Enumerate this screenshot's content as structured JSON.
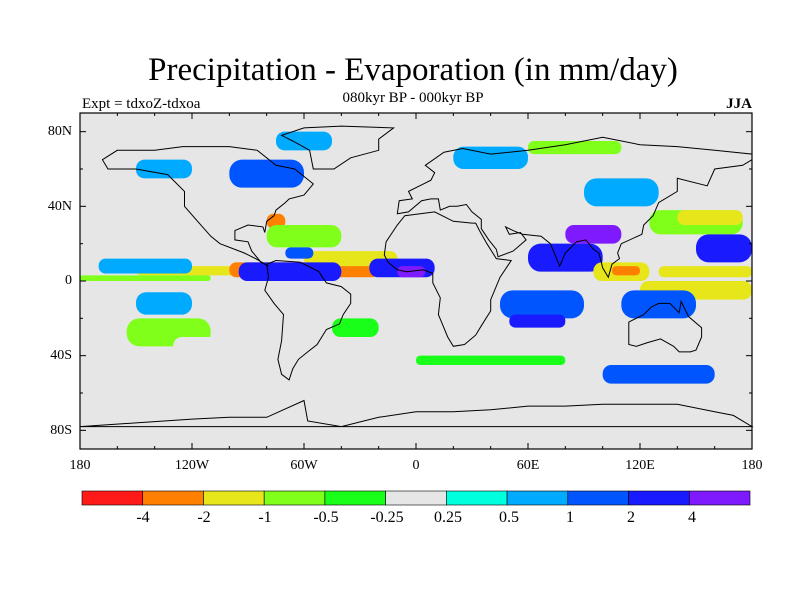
{
  "title": "Precipitation - Evaporation (in mm/day)",
  "subtitle": "080kyr BP - 000kyr BP",
  "left_label": "Expt = tdxoZ-tdxoa",
  "right_label": "JJA",
  "lat_labels": [
    "80N",
    "40N",
    "0",
    "40S",
    "80S"
  ],
  "lon_labels": [
    "180",
    "120W",
    "60W",
    "0",
    "60E",
    "120E",
    "180"
  ],
  "colorbar": {
    "colors": [
      "#ff1a1a",
      "#ff8000",
      "#e6e61a",
      "#80ff1a",
      "#1aff1a",
      "#e6e6e6",
      "#00ffdd",
      "#00aaff",
      "#0055ff",
      "#1a1aff",
      "#7f1aff"
    ],
    "labels": [
      "-4",
      "-2",
      "-1",
      "-0.5",
      "-0.25",
      "0.25",
      "0.5",
      "1",
      "2",
      "4"
    ]
  },
  "chart_data": {
    "type": "heatmap",
    "title": "Precipitation - Evaporation (in mm/day)",
    "subtitle": "080kyr BP - 000kyr BP",
    "left_label": "Expt = tdxoZ-tdxoa",
    "right_label": "JJA",
    "x_range": [
      -180,
      180
    ],
    "y_range": [
      -90,
      90
    ],
    "x_ticks": [
      "180",
      "120W",
      "60W",
      "0",
      "60E",
      "120E",
      "180"
    ],
    "y_ticks": [
      "80N",
      "40N",
      "0",
      "40S",
      "80S"
    ],
    "levels": [
      -4,
      -2,
      -1,
      -0.5,
      -0.25,
      0.25,
      0.5,
      1,
      2,
      4
    ],
    "colors": [
      "#ff1a1a",
      "#ff8000",
      "#e6e61a",
      "#80ff1a",
      "#1aff1a",
      "#e6e6e6",
      "#00ffdd",
      "#00aaff",
      "#0055ff",
      "#1a1aff",
      "#7f1aff"
    ],
    "bands": [
      [
        -150,
        -90,
        3,
        8,
        -2
      ],
      [
        -180,
        -110,
        0,
        3,
        -1
      ],
      [
        -170,
        -120,
        4,
        12,
        0.5
      ],
      [
        -100,
        -20,
        2,
        10,
        -3
      ],
      [
        -60,
        -10,
        8,
        16,
        -2
      ],
      [
        -80,
        -70,
        28,
        36,
        -3
      ],
      [
        -80,
        -40,
        18,
        30,
        -1
      ],
      [
        -95,
        -40,
        0,
        10,
        3
      ],
      [
        -70,
        -55,
        12,
        18,
        1
      ],
      [
        -25,
        10,
        2,
        12,
        2
      ],
      [
        -10,
        5,
        2,
        8,
        4
      ],
      [
        -150,
        -120,
        -18,
        -6,
        0.5
      ],
      [
        -155,
        -110,
        -35,
        -20,
        -1
      ],
      [
        -130,
        -90,
        -40,
        -30,
        -0.25
      ],
      [
        -45,
        -20,
        -30,
        -20,
        -0.5
      ],
      [
        60,
        100,
        5,
        20,
        2
      ],
      [
        80,
        110,
        20,
        30,
        4
      ],
      [
        45,
        90,
        -20,
        -5,
        1
      ],
      [
        50,
        80,
        -25,
        -18,
        2
      ],
      [
        95,
        125,
        0,
        10,
        -2
      ],
      [
        105,
        120,
        3,
        8,
        -4
      ],
      [
        120,
        180,
        -10,
        0,
        -2
      ],
      [
        130,
        180,
        2,
        8,
        -2
      ],
      [
        125,
        175,
        25,
        38,
        -1
      ],
      [
        140,
        175,
        30,
        38,
        -2
      ],
      [
        150,
        180,
        10,
        25,
        2
      ],
      [
        110,
        150,
        -20,
        -5,
        1
      ],
      [
        90,
        130,
        40,
        55,
        0.5
      ],
      [
        -100,
        -60,
        50,
        65,
        1
      ],
      [
        -150,
        -120,
        55,
        65,
        0.5
      ],
      [
        20,
        60,
        60,
        72,
        0.5
      ],
      [
        60,
        110,
        68,
        75,
        -1
      ],
      [
        -75,
        -45,
        70,
        80,
        0.5
      ],
      [
        -180,
        180,
        -60,
        -50,
        -0.25
      ],
      [
        0,
        80,
        -45,
        -40,
        -0.5
      ],
      [
        100,
        160,
        -55,
        -45,
        1
      ]
    ]
  }
}
